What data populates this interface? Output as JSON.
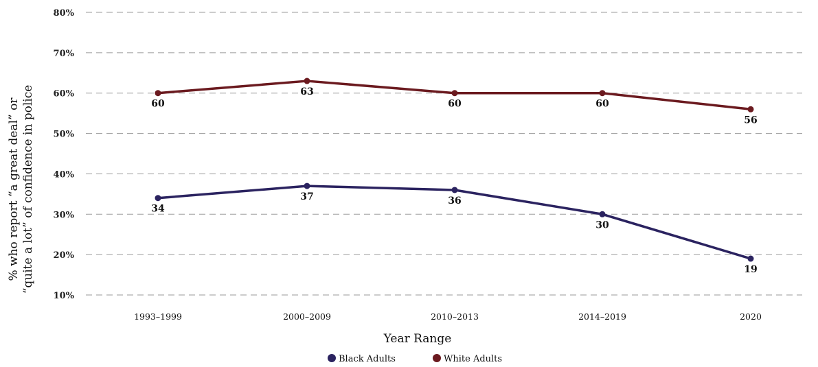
{
  "chart_data": {
    "type": "line",
    "categories": [
      "1993–1999",
      "2000–2009",
      "2010–2013",
      "2014–2019",
      "2020"
    ],
    "series": [
      {
        "name": "Black Adults",
        "values": [
          34,
          37,
          36,
          30,
          19
        ],
        "color": "#2b2360"
      },
      {
        "name": "White Adults",
        "values": [
          60,
          63,
          60,
          60,
          56
        ],
        "color": "#6b1a1f"
      }
    ],
    "yticks": [
      "10%",
      "20%",
      "30%",
      "40%",
      "50%",
      "60%",
      "70%",
      "80%"
    ],
    "ylim": [
      10,
      80
    ],
    "xlabel": "Year Range",
    "ylabel_line1": "% who report “a great deal” or",
    "ylabel_line2": "“quite a lot” of confidence in police",
    "grid": true,
    "legend_position": "bottom-center"
  }
}
